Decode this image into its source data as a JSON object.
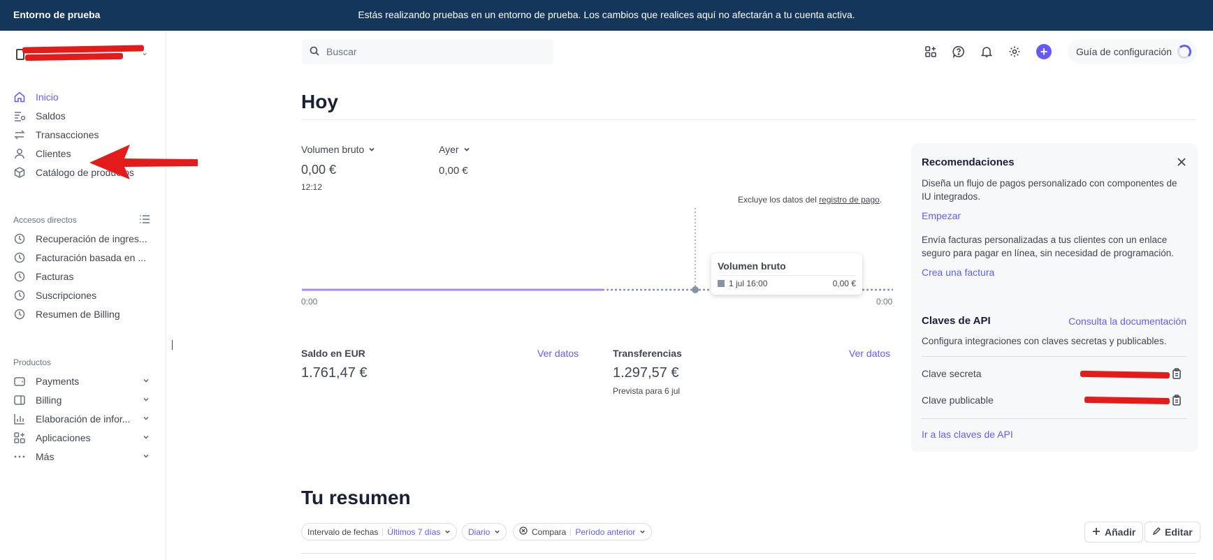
{
  "banner": {
    "env_label": "Entorno de prueba",
    "message": "Estás realizando pruebas en un entorno de prueba. Los cambios que realices aquí no afectarán a tu cuenta activa."
  },
  "sidebar": {
    "main_items": [
      {
        "label": "Inicio",
        "icon": "home-icon",
        "active": true
      },
      {
        "label": "Saldos",
        "icon": "balances-icon"
      },
      {
        "label": "Transacciones",
        "icon": "transfer-arrows-icon"
      },
      {
        "label": "Clientes",
        "icon": "person-icon"
      },
      {
        "label": "Catálogo de productos",
        "icon": "box-icon"
      }
    ],
    "shortcuts_label": "Accesos directos",
    "shortcuts": [
      {
        "label": "Recuperación de ingres...",
        "icon": "clock-icon"
      },
      {
        "label": "Facturación basada en ...",
        "icon": "clock-icon"
      },
      {
        "label": "Facturas",
        "icon": "clock-icon"
      },
      {
        "label": "Suscripciones",
        "icon": "clock-icon"
      },
      {
        "label": "Resumen de Billing",
        "icon": "clock-icon"
      }
    ],
    "products_label": "Productos",
    "products": [
      {
        "label": "Payments",
        "icon": "wallet-icon"
      },
      {
        "label": "Billing",
        "icon": "billing-icon"
      },
      {
        "label": "Elaboración de infor...",
        "icon": "bar-chart-icon"
      },
      {
        "label": "Aplicaciones",
        "icon": "apps-icon"
      },
      {
        "label": "Más",
        "icon": "more-icon"
      }
    ]
  },
  "header": {
    "search_placeholder": "Buscar",
    "setup_guide": "Guía de configuración"
  },
  "main": {
    "title": "Hoy",
    "metric_primary": {
      "label": "Volumen bruto",
      "value": "0,00 €",
      "time": "12:12"
    },
    "metric_secondary": {
      "label": "Ayer",
      "value": "0,00 €"
    },
    "chart_note_prefix": "Excluye los datos del ",
    "chart_note_link": "registro de pago",
    "chart_note_suffix": ".",
    "tick_start": "0:00",
    "tick_end": "0:00",
    "tooltip": {
      "title": "Volumen bruto",
      "date": "1 jul 16:00",
      "value": "0,00 €"
    },
    "balance": {
      "label": "Saldo en EUR",
      "link": "Ver datos",
      "value": "1.761,47 €"
    },
    "transfers": {
      "label": "Transferencias",
      "link": "Ver datos",
      "value": "1.297,57 €",
      "sub": "Prevista para 6 jul"
    }
  },
  "panel": {
    "title": "Recomendaciones",
    "rec1_text": "Diseña un flujo de pagos personalizado con componentes de IU integrados.",
    "rec1_link": "Empezar",
    "rec2_text": "Envía facturas personalizadas a tus clientes con un enlace seguro para pagar en línea, sin necesidad de programación.",
    "rec2_link": "Crea una factura",
    "api_title": "Claves de API",
    "api_doc_link": "Consulta la documentación",
    "api_text": "Configura integraciones con claves secretas y publicables.",
    "secret_key_label": "Clave secreta",
    "publishable_key_label": "Clave publicable",
    "api_keys_link": "Ir a las claves de API"
  },
  "summary": {
    "title": "Tu resumen",
    "date_range_label": "Intervalo de fechas",
    "date_range_value": "Últimos 7 días",
    "granularity": "Diario",
    "compare_label": "Compara",
    "compare_value": "Período anterior",
    "add_button": "Añadir",
    "edit_button": "Editar"
  },
  "chart_data": {
    "type": "line",
    "series": [
      {
        "name": "Volumen bruto",
        "values": [
          0,
          0
        ]
      }
    ],
    "x_ticks": [
      "0:00",
      "0:00"
    ],
    "highlight": {
      "label": "1 jul 16:00",
      "value": 0
    }
  },
  "colors": {
    "accent": "#635bff",
    "banner_bg": "#14365a",
    "annotation_red": "#e41b1b"
  }
}
